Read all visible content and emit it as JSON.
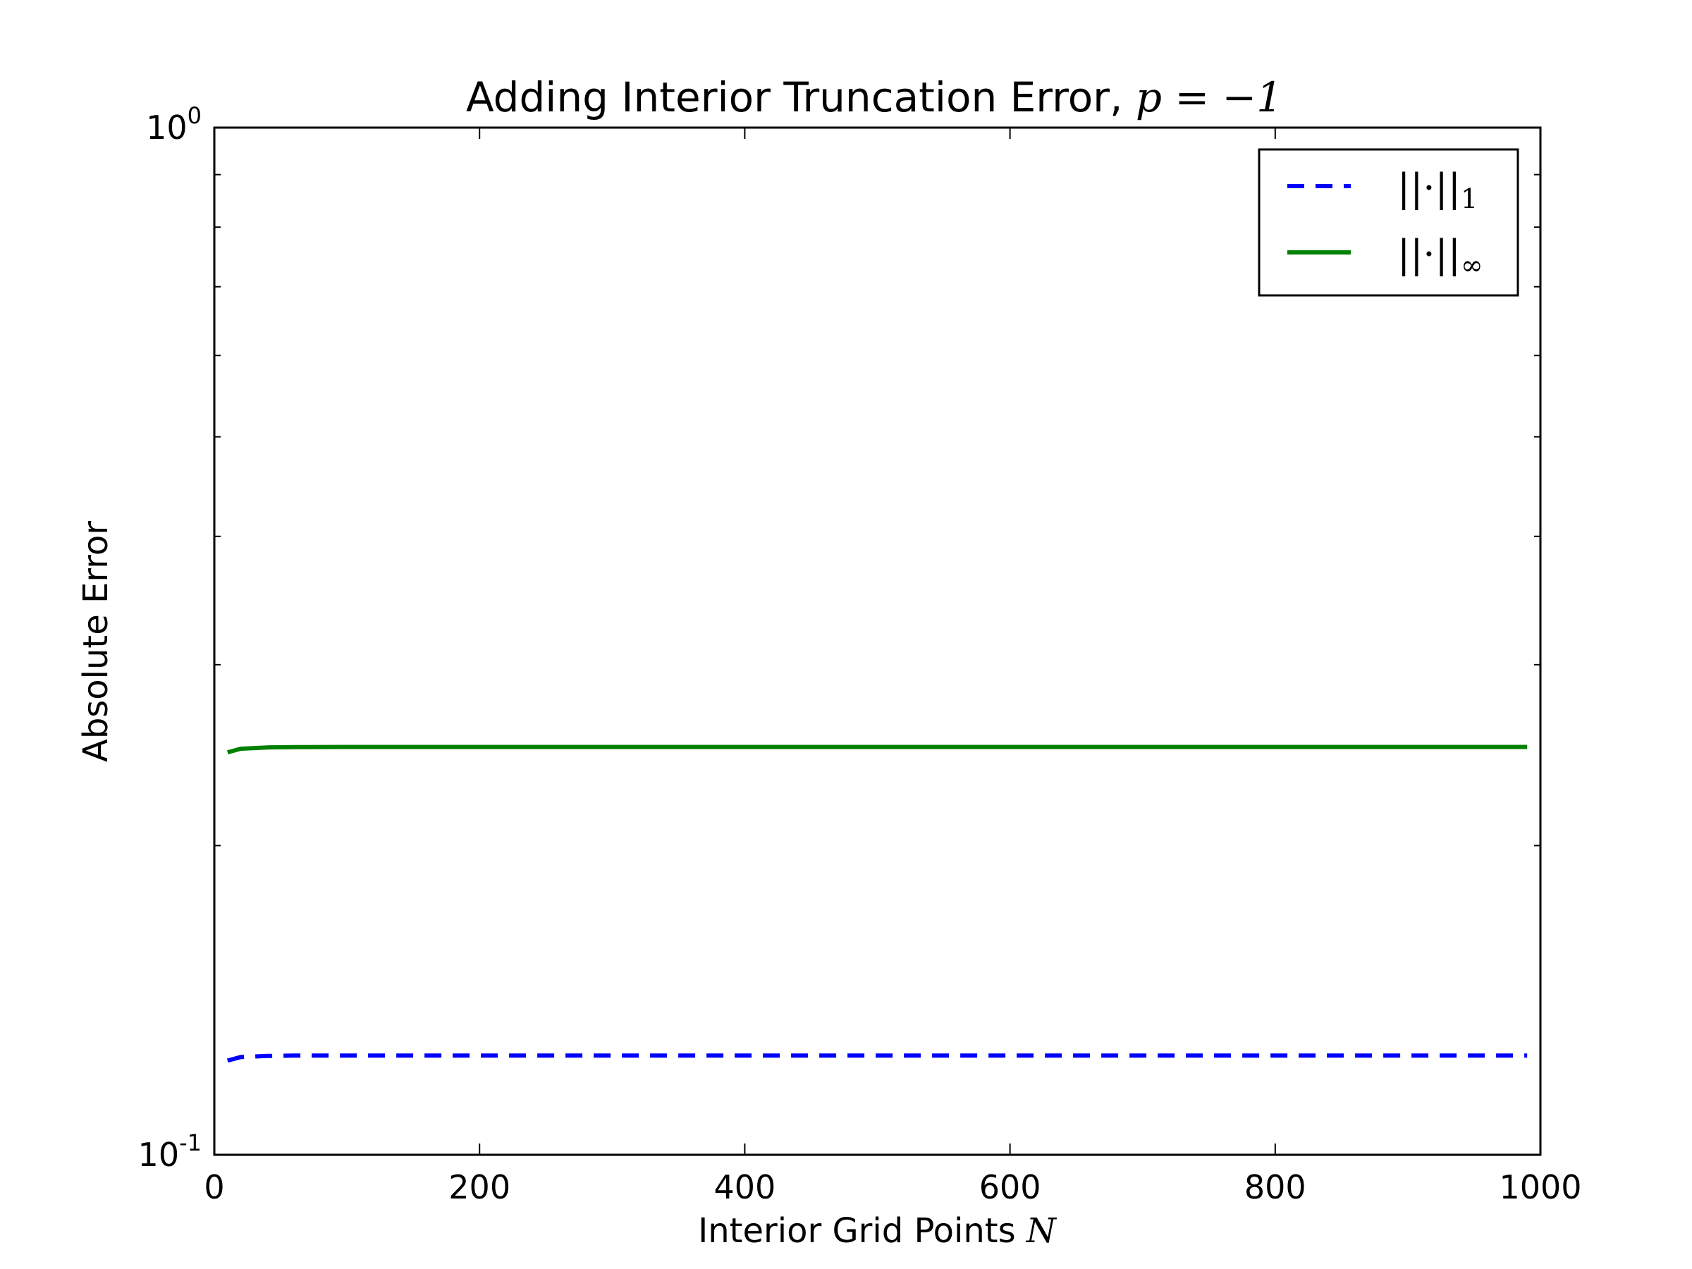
{
  "chart_data": {
    "type": "line",
    "title": "Adding Interior Truncation Error, ",
    "title_math": "p = −1",
    "xlabel": "Interior Grid Points ",
    "xlabel_math": "N",
    "ylabel": "Absolute Error",
    "xlim": [
      0,
      1000
    ],
    "ylim": [
      0.1,
      1.0
    ],
    "yscale": "log",
    "x_ticks": [
      0,
      200,
      400,
      600,
      800,
      1000
    ],
    "x_tick_labels": [
      "0",
      "200",
      "400",
      "600",
      "800",
      "1000"
    ],
    "y_tick_labels": [
      {
        "base": "10",
        "exp": "0"
      },
      {
        "base": "10",
        "exp": "-1"
      }
    ],
    "legend_position": "top-right",
    "grid": false,
    "series": [
      {
        "name": "||·||₁",
        "name_main": "||·||",
        "name_sub": "1",
        "color": "#0000ff",
        "style": "dashed",
        "x": [
          10,
          20,
          40,
          60,
          100,
          200,
          300,
          400,
          500,
          600,
          700,
          800,
          900,
          990
        ],
        "y": [
          0.1235,
          0.1245,
          0.1248,
          0.1249,
          0.1249,
          0.1249,
          0.1249,
          0.1249,
          0.1249,
          0.1249,
          0.1249,
          0.1249,
          0.1249,
          0.1249
        ]
      },
      {
        "name": "||·||∞",
        "name_main": "||·||",
        "name_sub": "∞",
        "color": "#008000",
        "style": "solid",
        "x": [
          10,
          20,
          40,
          60,
          100,
          200,
          300,
          400,
          500,
          600,
          700,
          800,
          900,
          990
        ],
        "y": [
          0.2465,
          0.2485,
          0.2492,
          0.2494,
          0.2495,
          0.2495,
          0.2495,
          0.2495,
          0.2495,
          0.2495,
          0.2495,
          0.2495,
          0.2495,
          0.2495
        ]
      }
    ]
  }
}
